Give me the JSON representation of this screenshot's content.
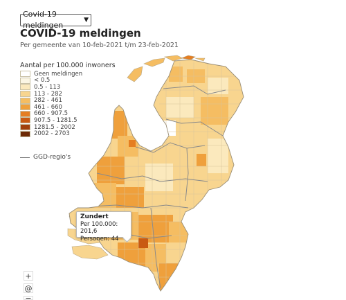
{
  "selector": {
    "value": "Covid-19 meldingen",
    "chevron_icon": "chevron-down-icon"
  },
  "title": "COVID-19 meldingen",
  "subtitle": "Per gemeente van 10-feb-2021 t/m 23-feb-2021",
  "legend": {
    "title": "Aantal per 100.000 inwoners",
    "items": [
      {
        "label": "Geen meldingen",
        "color": "#ffffff"
      },
      {
        "label": "< 0.5",
        "color": "#fbf6e4"
      },
      {
        "label": "0.5 - 113",
        "color": "#fbe9bd"
      },
      {
        "label": "113 - 282",
        "color": "#f8d58f"
      },
      {
        "label": "282 - 461",
        "color": "#f5bd62"
      },
      {
        "label": "461 - 660",
        "color": "#efa03c"
      },
      {
        "label": "660 - 907.5",
        "color": "#e57e22"
      },
      {
        "label": "907.5 - 1281.5",
        "color": "#c95a12"
      },
      {
        "label": "1281.5 - 2002",
        "color": "#a1400b"
      },
      {
        "label": "2002 - 2703",
        "color": "#6e2a06"
      }
    ]
  },
  "ggd_legend": "GGD-regio's",
  "tooltip": {
    "name": "Zundert",
    "per_100k": "Per 100.000: 201,6",
    "persons": "Personen: 44"
  },
  "zoom": {
    "in": "+",
    "locate": "@",
    "out": "−"
  }
}
